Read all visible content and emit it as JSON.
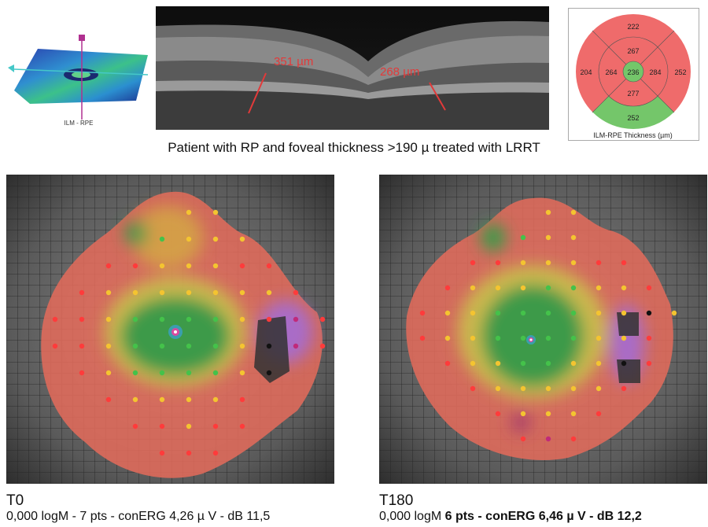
{
  "top": {
    "map3d_label": "ILM - RPE",
    "oct": {
      "measure_left": "351 µm",
      "measure_right": "268 µm"
    },
    "etdrs": {
      "outer_top": "222",
      "outer_left": "204",
      "outer_right": "252",
      "outer_bottom": "252",
      "inner_top": "267",
      "inner_left": "264",
      "inner_right": "284",
      "inner_bottom": "277",
      "center": "236",
      "caption": "ILM-RPE Thickness (µm)",
      "colors": {
        "red": "#ef6b6b",
        "green": "#74c66a"
      }
    }
  },
  "caption": "Patient with RP and foveal thickness >190 µ treated with LRRT",
  "panels": {
    "t0": {
      "label": "T0",
      "stats": "0,000 logM - 7 pts - conERG 4,26 µ V - dB 11,5"
    },
    "t180": {
      "label": "T180",
      "stats_plain": "0,000 logM ",
      "stats_bold": "6 pts - conERG 6,46 µ V - dB 12,2"
    }
  }
}
